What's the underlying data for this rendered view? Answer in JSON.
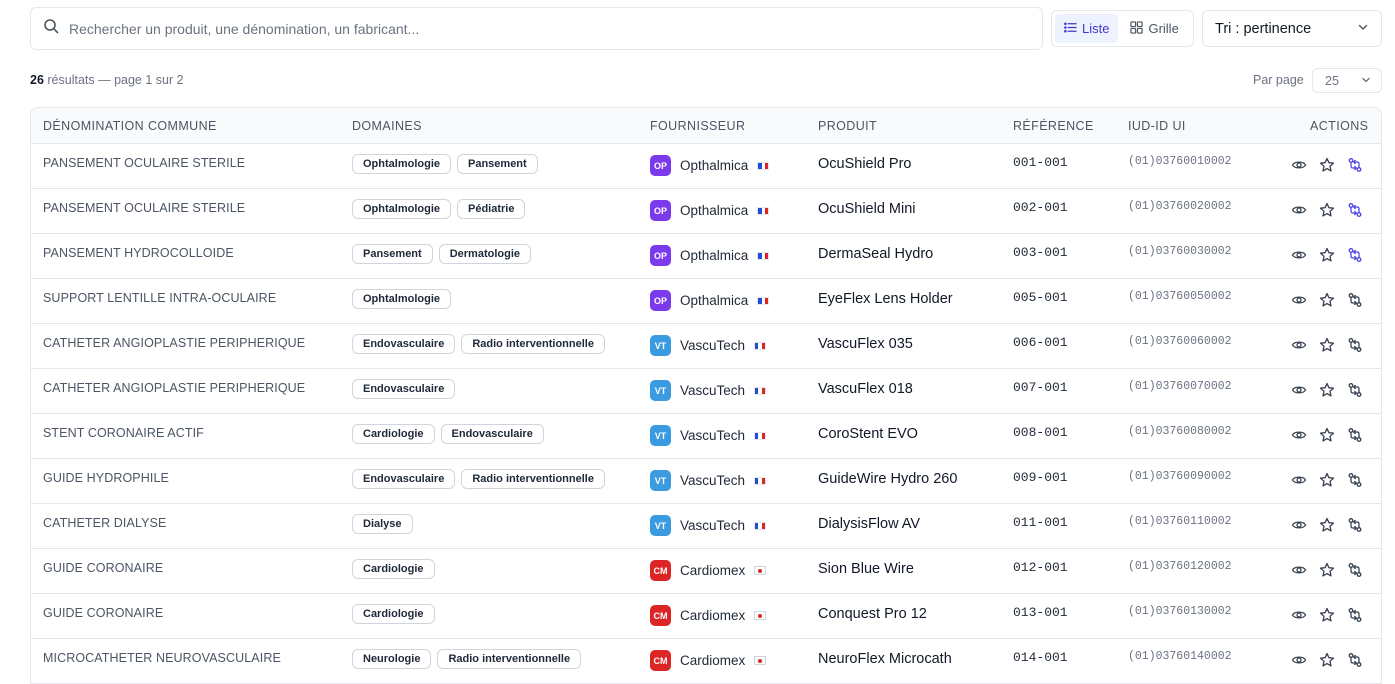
{
  "search": {
    "placeholder": "Rechercher un produit, une dénomination, un fabricant..."
  },
  "view": {
    "list_label": "Liste",
    "grid_label": "Grille",
    "active": "list"
  },
  "sort": {
    "label": "Tri : pertinence"
  },
  "results": {
    "count": "26",
    "suffix": " résultats — page 1 sur 2"
  },
  "per_page": {
    "label": "Par page",
    "value": "25"
  },
  "colors": {
    "accent": "#4338ca",
    "accent_bg": "#eef2ff",
    "active_compare": "#4f46e5"
  },
  "table": {
    "headers": {
      "denomination": "DÉNOMINATION COMMUNE",
      "domaines": "DOMAINES",
      "fournisseur": "FOURNISSEUR",
      "produit": "PRODUIT",
      "reference": "RÉFÉRENCE",
      "iud": "IUD-ID UI",
      "actions": "ACTIONS"
    },
    "rows": [
      {
        "denomination": "PANSEMENT OCULAIRE STERILE",
        "domaines": [
          "Ophtalmologie",
          "Pansement"
        ],
        "supplier_initials": "OP",
        "supplier": "Opthalmica",
        "supplier_color": "#7c3aed",
        "country": "fr",
        "produit": "OcuShield Pro",
        "reference": "001-001",
        "iud": "(01)03760010002",
        "compare_active": true
      },
      {
        "denomination": "PANSEMENT OCULAIRE STERILE",
        "domaines": [
          "Ophtalmologie",
          "Pédiatrie"
        ],
        "supplier_initials": "OP",
        "supplier": "Opthalmica",
        "supplier_color": "#7c3aed",
        "country": "fr",
        "produit": "OcuShield Mini",
        "reference": "002-001",
        "iud": "(01)03760020002",
        "compare_active": true
      },
      {
        "denomination": "PANSEMENT HYDROCOLLOIDE",
        "domaines": [
          "Pansement",
          "Dermatologie"
        ],
        "supplier_initials": "OP",
        "supplier": "Opthalmica",
        "supplier_color": "#7c3aed",
        "country": "fr",
        "produit": "DermaSeal Hydro",
        "reference": "003-001",
        "iud": "(01)03760030002",
        "compare_active": true
      },
      {
        "denomination": "SUPPORT LENTILLE INTRA-OCULAIRE",
        "domaines": [
          "Ophtalmologie"
        ],
        "supplier_initials": "OP",
        "supplier": "Opthalmica",
        "supplier_color": "#7c3aed",
        "country": "fr",
        "produit": "EyeFlex Lens Holder",
        "reference": "005-001",
        "iud": "(01)03760050002",
        "compare_active": false
      },
      {
        "denomination": "CATHETER ANGIOPLASTIE PERIPHERIQUE",
        "domaines": [
          "Endovasculaire",
          "Radio interventionnelle"
        ],
        "supplier_initials": "VT",
        "supplier": "VascuTech",
        "supplier_color": "#3b9be0",
        "country": "fr",
        "produit": "VascuFlex 035",
        "reference": "006-001",
        "iud": "(01)03760060002",
        "compare_active": false
      },
      {
        "denomination": "CATHETER ANGIOPLASTIE PERIPHERIQUE",
        "domaines": [
          "Endovasculaire"
        ],
        "supplier_initials": "VT",
        "supplier": "VascuTech",
        "supplier_color": "#3b9be0",
        "country": "fr",
        "produit": "VascuFlex 018",
        "reference": "007-001",
        "iud": "(01)03760070002",
        "compare_active": false
      },
      {
        "denomination": "STENT CORONAIRE ACTIF",
        "domaines": [
          "Cardiologie",
          "Endovasculaire"
        ],
        "supplier_initials": "VT",
        "supplier": "VascuTech",
        "supplier_color": "#3b9be0",
        "country": "fr",
        "produit": "CoroStent EVO",
        "reference": "008-001",
        "iud": "(01)03760080002",
        "compare_active": false
      },
      {
        "denomination": "GUIDE HYDROPHILE",
        "domaines": [
          "Endovasculaire",
          "Radio interventionnelle"
        ],
        "supplier_initials": "VT",
        "supplier": "VascuTech",
        "supplier_color": "#3b9be0",
        "country": "fr",
        "produit": "GuideWire Hydro 260",
        "reference": "009-001",
        "iud": "(01)03760090002",
        "compare_active": false
      },
      {
        "denomination": "CATHETER DIALYSE",
        "domaines": [
          "Dialyse"
        ],
        "supplier_initials": "VT",
        "supplier": "VascuTech",
        "supplier_color": "#3b9be0",
        "country": "fr",
        "produit": "DialysisFlow AV",
        "reference": "011-001",
        "iud": "(01)03760110002",
        "compare_active": false
      },
      {
        "denomination": "GUIDE CORONAIRE",
        "domaines": [
          "Cardiologie"
        ],
        "supplier_initials": "CM",
        "supplier": "Cardiomex",
        "supplier_color": "#dc2626",
        "country": "jp",
        "produit": "Sion Blue Wire",
        "reference": "012-001",
        "iud": "(01)03760120002",
        "compare_active": false
      },
      {
        "denomination": "GUIDE CORONAIRE",
        "domaines": [
          "Cardiologie"
        ],
        "supplier_initials": "CM",
        "supplier": "Cardiomex",
        "supplier_color": "#dc2626",
        "country": "jp",
        "produit": "Conquest Pro 12",
        "reference": "013-001",
        "iud": "(01)03760130002",
        "compare_active": false
      },
      {
        "denomination": "MICROCATHETER NEUROVASCULAIRE",
        "domaines": [
          "Neurologie",
          "Radio interventionnelle"
        ],
        "supplier_initials": "CM",
        "supplier": "Cardiomex",
        "supplier_color": "#dc2626",
        "country": "jp",
        "produit": "NeuroFlex Microcath",
        "reference": "014-001",
        "iud": "(01)03760140002",
        "compare_active": false
      }
    ]
  }
}
